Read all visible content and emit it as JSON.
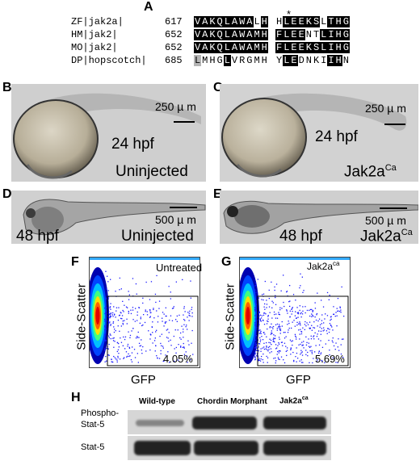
{
  "panels": {
    "A": "A",
    "B": "B",
    "C": "C",
    "D": "D",
    "E": "E",
    "F": "F",
    "G": "G",
    "H": "H"
  },
  "alignment": {
    "star": "*",
    "rows": [
      {
        "name": "ZF|jak2a|",
        "num": "617",
        "seq": "VAKQLAWALH HLEEKSLTHG",
        "shade": "bbbbbbbbwb wbbbbbwbbb"
      },
      {
        "name": "HM|jak2|",
        "num": "652",
        "seq": "VAKQLAWAMH FLEENTLIHG",
        "shade": "bbbbbbbbbb bbbbwwbbbb"
      },
      {
        "name": "MO|jak2|",
        "num": "652",
        "seq": "VAKQLAWAMH FLEEKSLIHG",
        "shade": "bbbbbbbbbb bbbbbbbbbb"
      },
      {
        "name": "DP|hopscotch|",
        "num": "685",
        "seq": "LMHGLVRGMH YLEDNKIIHN",
        "shade": "gwwwbwwwww wbbwwwwbbw"
      }
    ]
  },
  "embryos": {
    "B": {
      "stage": "24 hpf",
      "condition": "Uninjected",
      "scale": "250 µ m"
    },
    "C": {
      "stage": "24 hpf",
      "condition": "Jak2a",
      "condition_sup": "Ca",
      "scale": "250 µ m"
    },
    "D": {
      "stage": "48 hpf",
      "condition": "Uninjected",
      "scale": "500 µ m"
    },
    "E": {
      "stage": "48 hpf",
      "condition": "Jak2a",
      "condition_sup": "Ca",
      "scale": "500 µ m"
    }
  },
  "flow": {
    "F": {
      "label": "Untreated",
      "percent": "4.05%",
      "xlabel": "GFP",
      "ylabel": "Side-Scatter"
    },
    "G": {
      "label": "Jak2a",
      "label_sup": "ca",
      "percent": "5.69%",
      "xlabel": "GFP",
      "ylabel": "Side-Scatter"
    }
  },
  "blot": {
    "columns": [
      {
        "label": "Wild-type"
      },
      {
        "label": "Chordin Morphant"
      },
      {
        "label": "Jak2a",
        "sup": "ca"
      }
    ],
    "rows": [
      {
        "label_line1": "Phospho-",
        "label_line2": "Stat-5"
      },
      {
        "label_line1": "Stat-5"
      }
    ]
  }
}
